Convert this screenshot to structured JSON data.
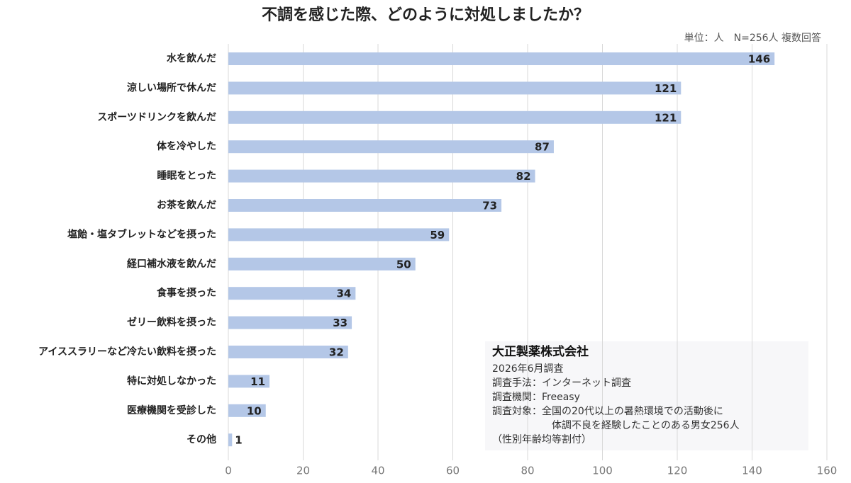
{
  "chart_data": {
    "type": "bar",
    "orientation": "horizontal",
    "title": "不調を感じた際、どのように対処しましたか？",
    "subtitle": "単位：人　N=256人 複数回答",
    "categories": [
      "水を飲んだ",
      "涼しい場所で休んだ",
      "スポーツドリンクを飲んだ",
      "体を冷やした",
      "睡眠をとった",
      "お茶を飲んだ",
      "塩飴・塩タブレットなどを摂った",
      "経口補水液を飲んだ",
      "食事を摂った",
      "ゼリー飲料を摂った",
      "アイススラリーなど冷たい飲料を摂った",
      "特に対処しなかった",
      "医療機関を受診した",
      "その他"
    ],
    "values": [
      146,
      121,
      121,
      87,
      82,
      73,
      59,
      50,
      34,
      33,
      32,
      11,
      10,
      1
    ],
    "color": "#b4c7e7",
    "xlim": [
      0,
      160
    ],
    "xticks": [
      0,
      20,
      40,
      60,
      80,
      100,
      120,
      140,
      160
    ],
    "grid": true,
    "annotations": [
      "大正製薬株式会社",
      "2026年6月調査",
      "調査手法：インターネット調査",
      "調査機関：Freeasy",
      "調査対象：全国の20代以上の暑熱環境での活動後に",
      "体調不良を経験したことのある男女256人",
      "（性別年齢均等割付）"
    ]
  }
}
